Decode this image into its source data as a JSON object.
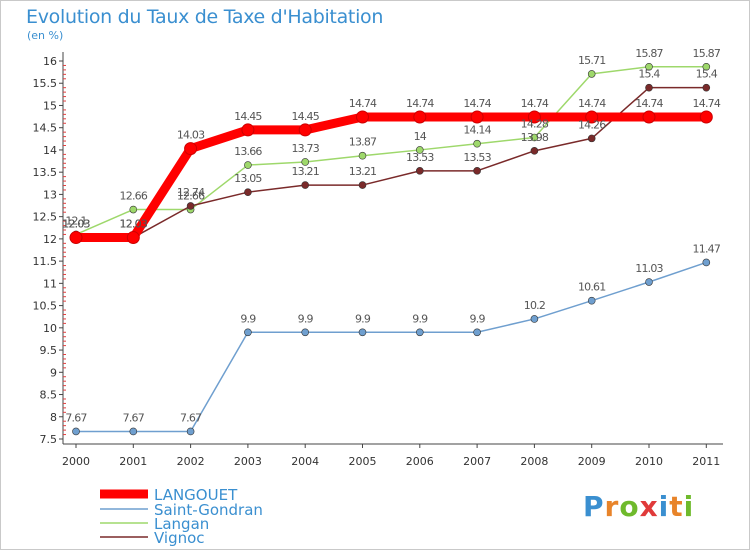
{
  "title": "Evolution du Taux de Taxe d'Habitation",
  "unit_label": "(en %)",
  "brand": {
    "letters": [
      "P",
      "r",
      "o",
      "x",
      "i",
      "t",
      "i"
    ],
    "colors": [
      "#3a8fd0",
      "#e8842a",
      "#6fba2c",
      "#e03a3a",
      "#3a8fd0",
      "#e8842a",
      "#6fba2c"
    ]
  },
  "chart_data": {
    "type": "line",
    "x": [
      "2000",
      "2001",
      "2002",
      "2003",
      "2004",
      "2005",
      "2006",
      "2007",
      "2008",
      "2009",
      "2010",
      "2011"
    ],
    "ylim": [
      7.5,
      16
    ],
    "yticks": [
      "7.5",
      "8",
      "8.5",
      "9",
      "9.5",
      "10",
      "10.5",
      "11",
      "11.5",
      "12",
      "12.5",
      "13",
      "13.5",
      "14",
      "14.5",
      "15",
      "15.5",
      "16"
    ],
    "grid": false,
    "legend_position": "bottom-left",
    "series": [
      {
        "name": "LANGOUET",
        "color": "#ff0000",
        "values": [
          12.03,
          12.03,
          14.03,
          14.45,
          14.45,
          14.74,
          14.74,
          14.74,
          14.74,
          14.74,
          14.74,
          14.74
        ],
        "labels": [
          "12.03",
          "12.03",
          "14.03",
          "14.45",
          "14.45",
          "14.74",
          "14.74",
          "14.74",
          "14.74",
          "14.74",
          "14.74",
          "14.74"
        ]
      },
      {
        "name": "Saint-Gondran",
        "color": "#6f9fcf",
        "values": [
          7.67,
          7.67,
          7.67,
          9.9,
          9.9,
          9.9,
          9.9,
          9.9,
          10.2,
          10.61,
          11.03,
          11.47
        ],
        "labels": [
          "7.67",
          "7.67",
          "7.67",
          "9.9",
          "9.9",
          "9.9",
          "9.9",
          "9.9",
          "10.2",
          "10.61",
          "11.03",
          "11.47"
        ]
      },
      {
        "name": "Langan",
        "color": "#9ed86b",
        "values": [
          12.1,
          12.66,
          12.66,
          13.66,
          13.73,
          13.87,
          14,
          14.14,
          14.28,
          15.71,
          15.87,
          15.87
        ],
        "labels": [
          "12.1",
          "12.66",
          "12.66",
          "13.66",
          "13.73",
          "13.87",
          "14",
          "14.14",
          "14.28",
          "15.71",
          "15.87",
          "15.87"
        ]
      },
      {
        "name": "Vignoc",
        "color": "#7a2a2a",
        "values": [
          12.03,
          12.03,
          12.74,
          13.05,
          13.21,
          13.21,
          13.53,
          13.53,
          13.98,
          14.26,
          15.4,
          15.4
        ],
        "labels": [
          "12.03",
          "12.03",
          "12.74",
          "13.05",
          "13.21",
          "13.21",
          "13.53",
          "13.53",
          "13.98",
          "14.26",
          "15.4",
          "15.4"
        ]
      }
    ]
  }
}
